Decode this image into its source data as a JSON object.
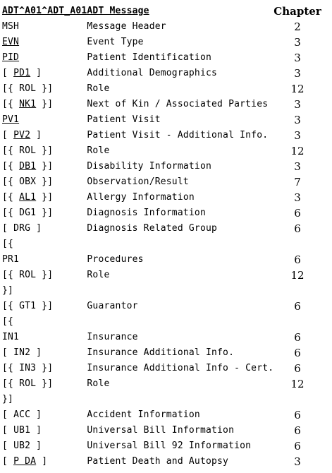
{
  "header": {
    "segment": "ADT^A01^ADT_A01",
    "message": "ADT Message",
    "chapter": "Chapter"
  },
  "rows": [
    {
      "pre": "",
      "link": "MSH",
      "post": "",
      "linked": false,
      "msg": "Message Header",
      "ch": "2"
    },
    {
      "pre": "",
      "link": "EVN",
      "post": "",
      "linked": true,
      "msg": "Event Type",
      "ch": "3"
    },
    {
      "pre": "",
      "link": "PID",
      "post": "",
      "linked": true,
      "msg": "Patient Identification",
      "ch": "3"
    },
    {
      "pre": "[ ",
      "link": "PD1",
      "post": " ]",
      "linked": true,
      "msg": "Additional Demographics",
      "ch": "3"
    },
    {
      "pre": "[{ ",
      "link": "ROL",
      "post": " }]",
      "linked": false,
      "msg": "Role",
      "ch": "12"
    },
    {
      "pre": "[{ ",
      "link": "NK1",
      "post": " }]",
      "linked": true,
      "msg": "Next of Kin / Associated Parties",
      "ch": "3"
    },
    {
      "pre": "",
      "link": "PV1",
      "post": "",
      "linked": true,
      "msg": "Patient Visit",
      "ch": "3"
    },
    {
      "pre": "[ ",
      "link": "PV2",
      "post": " ]",
      "linked": true,
      "msg": "Patient Visit - Additional Info.",
      "ch": "3"
    },
    {
      "pre": "[{ ",
      "link": "ROL",
      "post": " }]",
      "linked": false,
      "msg": "Role",
      "ch": "12"
    },
    {
      "pre": "[{ ",
      "link": "DB1",
      "post": " }]",
      "linked": true,
      "msg": "Disability Information",
      "ch": "3"
    },
    {
      "pre": "[{ ",
      "link": "OBX",
      "post": " }]",
      "linked": false,
      "msg": "Observation/Result",
      "ch": "7"
    },
    {
      "pre": "[{ ",
      "link": "AL1",
      "post": " }]",
      "linked": true,
      "msg": "Allergy Information",
      "ch": "3"
    },
    {
      "pre": "[{ ",
      "link": "DG1",
      "post": " }]",
      "linked": false,
      "msg": "Diagnosis Information",
      "ch": "6"
    },
    {
      "pre": "[ ",
      "link": "DRG",
      "post": " ]",
      "linked": false,
      "msg": "Diagnosis Related Group",
      "ch": "6"
    },
    {
      "pre": "[{",
      "link": "",
      "post": "",
      "linked": false,
      "msg": "",
      "ch": ""
    },
    {
      "pre": "",
      "link": "PR1",
      "post": "",
      "linked": false,
      "msg": "Procedures",
      "ch": "6"
    },
    {
      "pre": "[{ ",
      "link": "ROL",
      "post": " }]",
      "linked": false,
      "msg": "Role",
      "ch": "12"
    },
    {
      "pre": "}]",
      "link": "",
      "post": "",
      "linked": false,
      "msg": "",
      "ch": ""
    },
    {
      "pre": "[{ ",
      "link": "GT1",
      "post": " }]",
      "linked": false,
      "msg": "Guarantor",
      "ch": "6"
    },
    {
      "pre": "[{",
      "link": "",
      "post": "",
      "linked": false,
      "msg": "",
      "ch": ""
    },
    {
      "pre": "",
      "link": "IN1",
      "post": "",
      "linked": false,
      "msg": "Insurance",
      "ch": "6"
    },
    {
      "pre": "[ ",
      "link": "IN2",
      "post": " ]",
      "linked": false,
      "msg": "Insurance Additional Info.",
      "ch": "6"
    },
    {
      "pre": "[{ ",
      "link": "IN3",
      "post": " }]",
      "linked": false,
      "msg": "Insurance Additional Info - Cert.",
      "ch": "6"
    },
    {
      "pre": "[{ ",
      "link": "ROL",
      "post": " }]",
      "linked": false,
      "msg": "Role",
      "ch": "12"
    },
    {
      "pre": "}]",
      "link": "",
      "post": "",
      "linked": false,
      "msg": "",
      "ch": ""
    },
    {
      "pre": "[ ",
      "link": "ACC",
      "post": " ]",
      "linked": false,
      "msg": "Accident Information",
      "ch": "6"
    },
    {
      "pre": "[ ",
      "link": "UB1",
      "post": " ]",
      "linked": false,
      "msg": "Universal Bill Information",
      "ch": "6"
    },
    {
      "pre": "[ ",
      "link": "UB2",
      "post": " ]",
      "linked": false,
      "msg": "Universal Bill 92 Information",
      "ch": "6"
    },
    {
      "pre": "[ ",
      "link": "P DA",
      "post": " ]",
      "linked": true,
      "msg": "Patient Death and Autopsy",
      "ch": "3"
    }
  ]
}
